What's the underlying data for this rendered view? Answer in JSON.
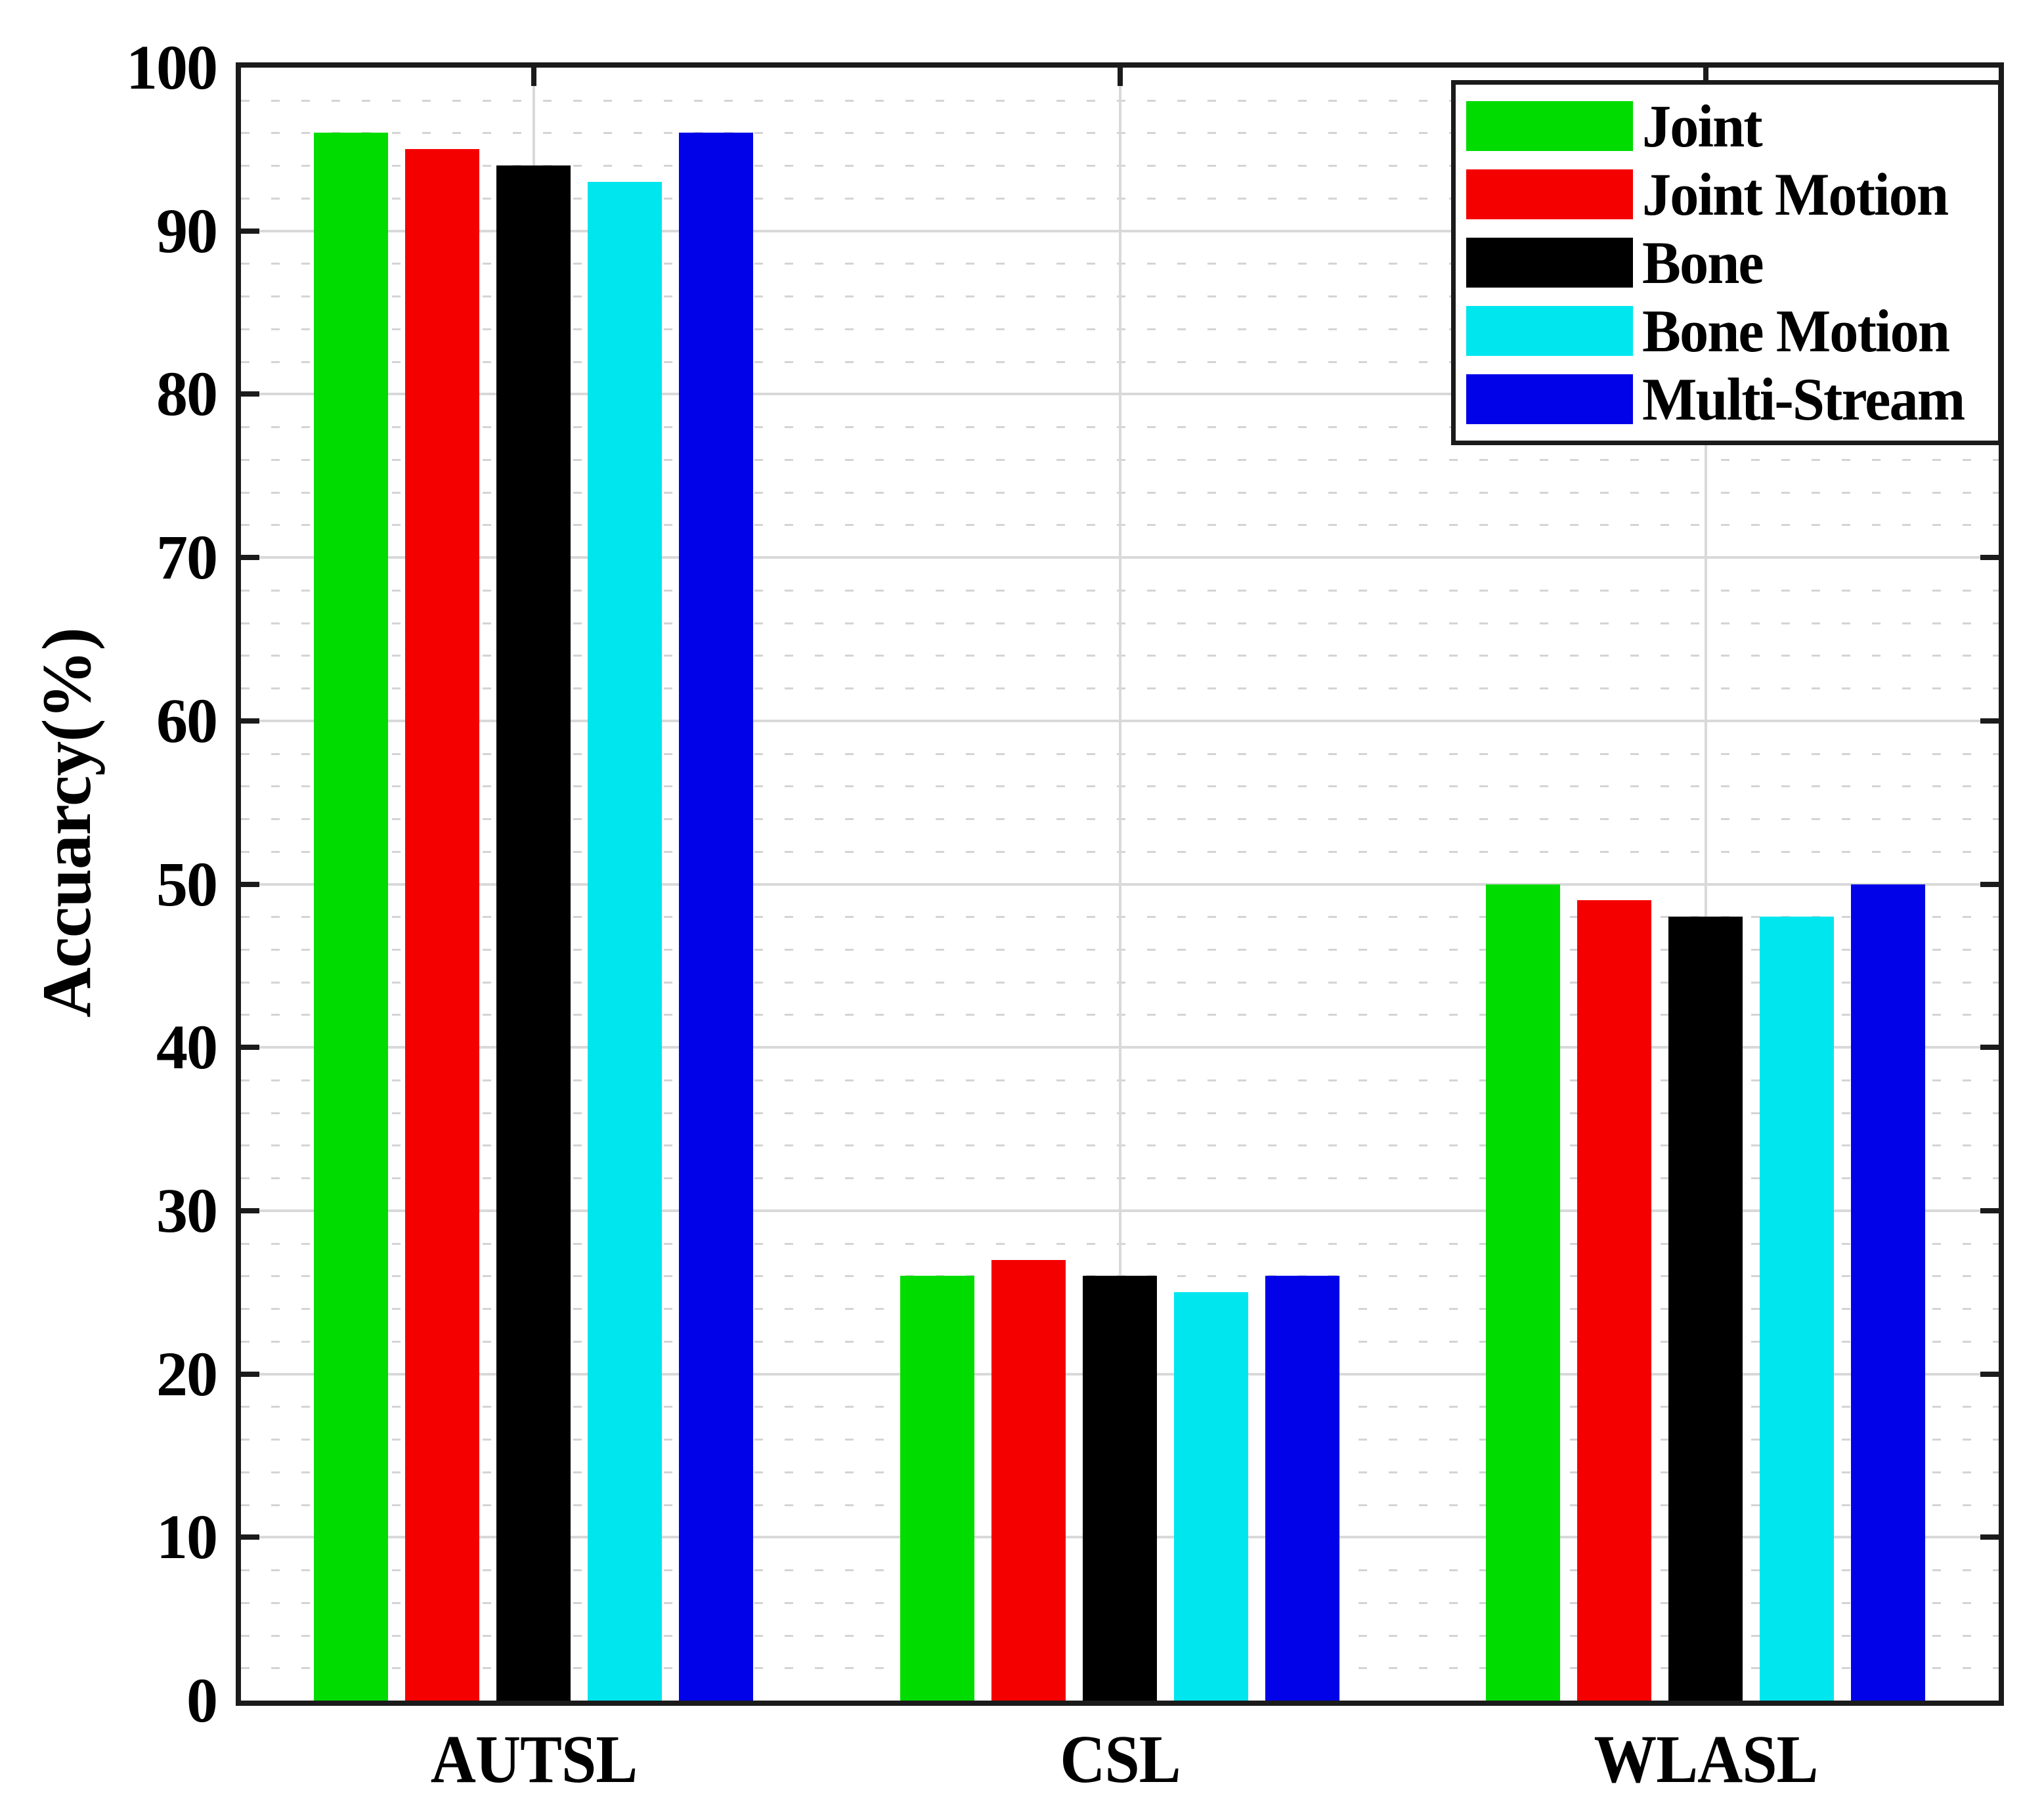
{
  "figure": {
    "background": "#ffffff",
    "axis_color": "#1b1b1b",
    "grid_major_color": "#d9d9d9",
    "grid_minor_color": "#d4d4d4"
  },
  "chart_data": {
    "type": "bar",
    "title": "",
    "xlabel": "",
    "ylabel": "Accuarcy(%)",
    "categories": [
      "AUTSL",
      "CSL",
      "WLASL"
    ],
    "series": [
      {
        "name": "Joint",
        "color": "#00DC00",
        "values": [
          96,
          26,
          50
        ]
      },
      {
        "name": "Joint Motion",
        "color": "#F40000",
        "values": [
          95,
          27,
          49
        ]
      },
      {
        "name": "Bone",
        "color": "#000000",
        "values": [
          94,
          26,
          48
        ]
      },
      {
        "name": "Bone Motion",
        "color": "#00E6EE",
        "values": [
          93,
          25,
          48
        ]
      },
      {
        "name": "Multi-Stream",
        "color": "#0202E8",
        "values": [
          96,
          26,
          50
        ]
      }
    ],
    "ylim": [
      0,
      100
    ],
    "yticks": [
      0,
      10,
      20,
      30,
      40,
      50,
      60,
      70,
      80,
      90,
      100
    ],
    "minor_grid_step": 2,
    "grid": {
      "horizontal_major": "solid",
      "horizontal_minor": "dashed",
      "vertical_major_at_category_centers": "solid"
    },
    "legend_position": "top-right-inside",
    "legend_border": true
  }
}
